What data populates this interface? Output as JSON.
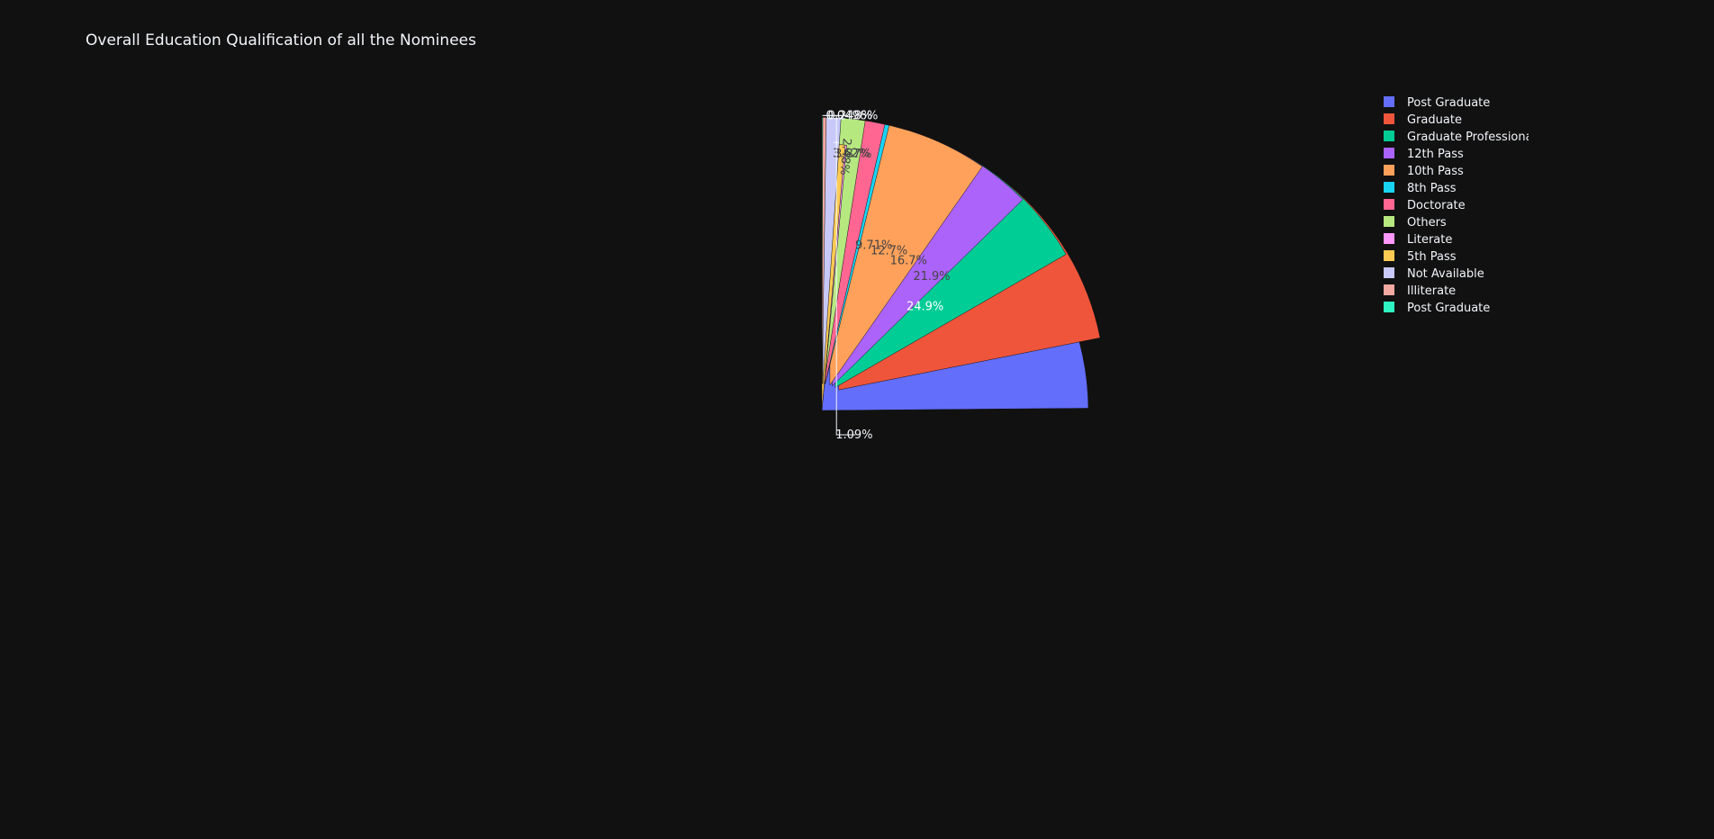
{
  "chart_data": {
    "type": "pie",
    "title": "Overall Education Qualification of all the Nominees",
    "legend_position": "top-right",
    "slices": [
      {
        "label": "Post Graduate",
        "value": 24.9,
        "text": "24.9%",
        "color": "#636efa",
        "pulled": false
      },
      {
        "label": "Graduate",
        "value": 21.9,
        "text": "21.9%",
        "color": "#ef553b",
        "pulled": true
      },
      {
        "label": "Graduate Professional",
        "value": 16.7,
        "text": "16.7%",
        "color": "#00cc96",
        "pulled": true
      },
      {
        "label": "12th Pass",
        "value": 12.7,
        "text": "12.7%",
        "color": "#ab63fa",
        "pulled": true
      },
      {
        "label": "10th Pass",
        "value": 9.71,
        "text": "9.71%",
        "color": "#ffa15a",
        "pulled": true
      },
      {
        "label": "8th Pass",
        "value": 3.87,
        "text": "3.87%",
        "color": "#19d3f3",
        "pulled": true
      },
      {
        "label": "Doctorate",
        "value": 3.62,
        "text": "3.62%",
        "color": "#ff6692",
        "pulled": true
      },
      {
        "label": "Others",
        "value": 2.48,
        "text": "2.48%",
        "color": "#b6e880",
        "pulled": true
      },
      {
        "label": "Literate",
        "value": 1.49,
        "text": "1.49%",
        "color": "#ff97ff",
        "pulled": false
      },
      {
        "label": "5th Pass",
        "value": 1.39,
        "text": "1.39%",
        "color": "#fecb52",
        "pulled": false
      },
      {
        "label": "Not Available",
        "value": 1.09,
        "text": "1.09%",
        "color": "#c8c9f8",
        "pulled": true
      },
      {
        "label": "Illiterate",
        "value": 0.248,
        "text": "0.248%",
        "color": "#f3a8a0",
        "pulled": true
      },
      {
        "label": "Post Graduate",
        "value": 0.0496,
        "text": "0.0496%",
        "color": "#2ff2c2",
        "pulled": true
      }
    ]
  }
}
